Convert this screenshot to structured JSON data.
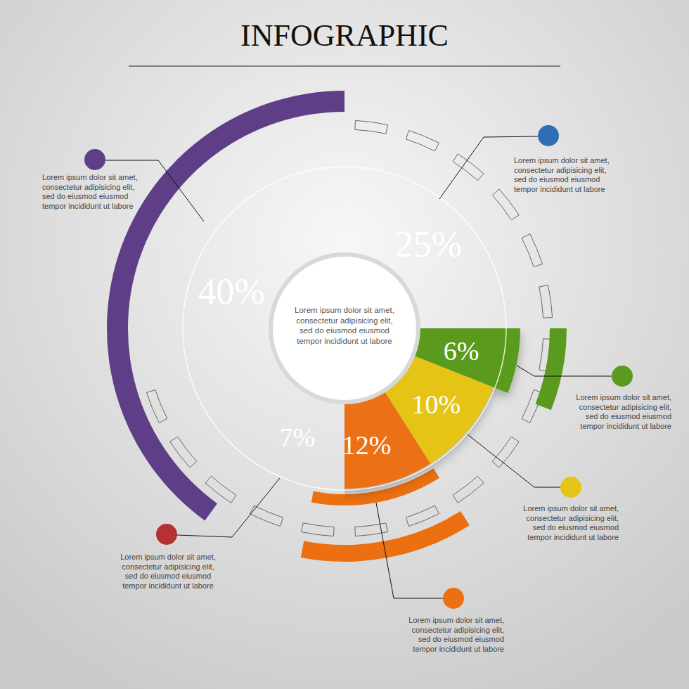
{
  "chart_data": {
    "type": "pie",
    "title": "INFOGRAPHIC",
    "values": [
      25,
      6,
      10,
      12,
      7,
      40
    ],
    "value_labels": [
      "25%",
      "6%",
      "10%",
      "12%",
      "7%",
      "40%"
    ],
    "colors": [
      "#2f6db5",
      "#5a9a1f",
      "#e6c416",
      "#ec7012",
      "#b53234",
      "#5e3f87"
    ],
    "data_labels": true,
    "center_text": [
      "Lorem ipsum dolor sit amet,",
      "consectetur adipisicing elit,",
      "sed do eiusmod eiusmod",
      "tempor incididunt ut labore"
    ],
    "descriptions": [
      [
        "Lorem ipsum dolor sit amet,",
        "consectetur adipisicing elit,",
        "sed do eiusmod eiusmod",
        "tempor incididunt ut labore"
      ],
      [
        "Lorem ipsum dolor sit amet,",
        "consectetur adipisicing elit,",
        "sed do eiusmod eiusmod",
        "tempor incididunt ut labore"
      ],
      [
        "Lorem ipsum dolor sit amet,",
        "consectetur adipisicing elit,",
        "sed do eiusmod eiusmod",
        "tempor incididunt ut labore"
      ],
      [
        "Lorem ipsum dolor sit amet,",
        "consectetur adipisicing elit,",
        "sed do eiusmod eiusmod",
        "tempor incididunt ut labore"
      ],
      [
        "Lorem ipsum dolor sit amet,",
        "consectetur adipisicing elit,",
        "sed do eiusmod eiusmod",
        "tempor incididunt ut labore"
      ],
      [
        "Lorem ipsum dolor sit amet,",
        "consectetur adipisicing elit,",
        "sed do eiusmod eiusmod",
        "tempor incididunt ut labore"
      ]
    ]
  }
}
